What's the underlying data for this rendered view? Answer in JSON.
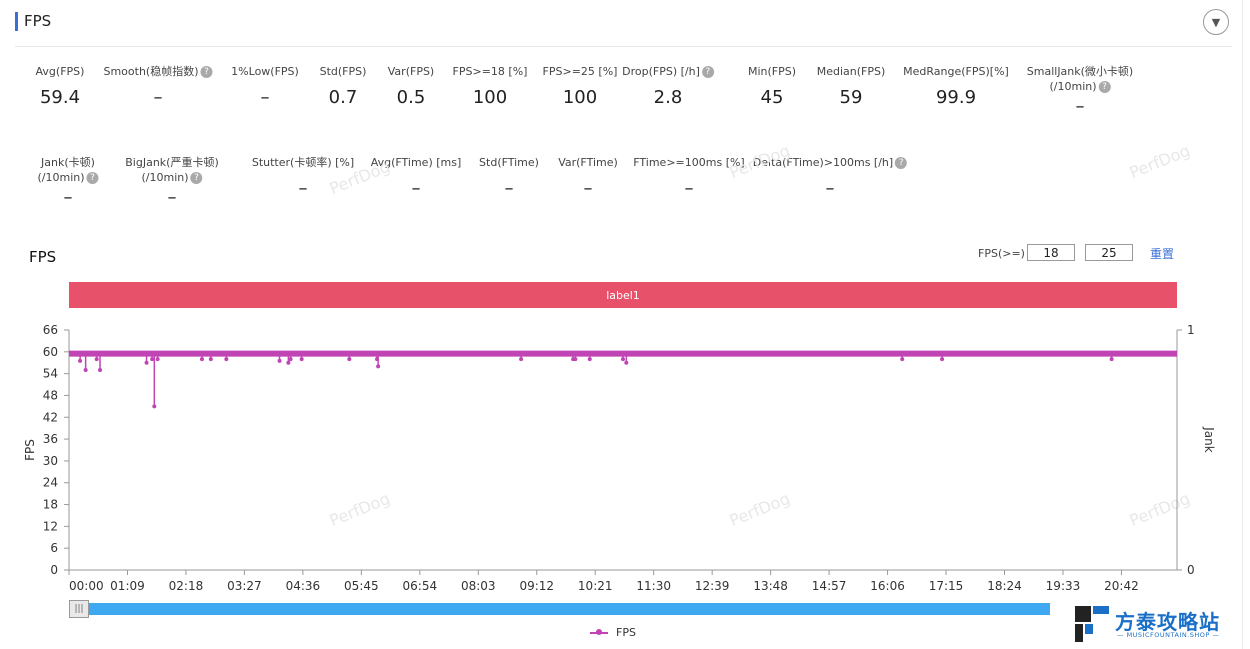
{
  "header": {
    "title": "FPS",
    "collapse_icon": "chevron-down-icon"
  },
  "metrics_row1": [
    {
      "label": "Avg(FPS)",
      "help": false,
      "value": "59.4"
    },
    {
      "label": "Smooth(稳帧指数)",
      "help": true,
      "value": "–"
    },
    {
      "label": "1%Low(FPS)",
      "help": false,
      "value": "–"
    },
    {
      "label": "Std(FPS)",
      "help": false,
      "value": "0.7"
    },
    {
      "label": "Var(FPS)",
      "help": false,
      "value": "0.5"
    },
    {
      "label": "FPS>=18 [%]",
      "help": false,
      "value": "100"
    },
    {
      "label": "FPS>=25 [%]",
      "help": false,
      "value": "100"
    },
    {
      "label": "Drop(FPS) [/h]",
      "help": true,
      "value": "2.8"
    },
    {
      "label": "Min(FPS)",
      "help": false,
      "value": "45"
    },
    {
      "label": "Median(FPS)",
      "help": false,
      "value": "59"
    },
    {
      "label": "MedRange(FPS)[%]",
      "help": false,
      "value": "99.9"
    },
    {
      "label": "SmallJank(微小卡顿)",
      "label2": "(/10min)",
      "help": true,
      "value": "–"
    }
  ],
  "metrics_row2": [
    {
      "label": "Jank(卡顿)",
      "label2": "(/10min)",
      "help": true,
      "value": "–"
    },
    {
      "label": "BigJank(严重卡顿)",
      "label2": "(/10min)",
      "help": true,
      "value": "–"
    },
    {
      "label": "Stutter(卡顿率) [%]",
      "help": false,
      "value": "–"
    },
    {
      "label": "Avg(FTime) [ms]",
      "help": false,
      "value": "–"
    },
    {
      "label": "Std(FTime)",
      "help": false,
      "value": "–"
    },
    {
      "label": "Var(FTime)",
      "help": false,
      "value": "–"
    },
    {
      "label": "FTime>=100ms [%]",
      "help": false,
      "value": "–"
    },
    {
      "label": "Delta(FTime)>100ms [/h]",
      "help": true,
      "value": "–"
    }
  ],
  "watermark": "PerfDog",
  "chart": {
    "title": "FPS",
    "threshold_label": "FPS(>=)",
    "threshold_1": "18",
    "threshold_2": "25",
    "reset_label": "重置",
    "label_band": "label1",
    "legend": "FPS"
  },
  "chart_data": {
    "type": "line",
    "ylabel": "FPS",
    "y2label": "Jank",
    "ylim": [
      0,
      66
    ],
    "y_ticks": [
      "0",
      "6",
      "12",
      "18",
      "24",
      "30",
      "36",
      "42",
      "48",
      "54",
      "60",
      "66"
    ],
    "y2_ticks": [
      "0",
      "1"
    ],
    "x_ticks": [
      "00:00",
      "01:09",
      "02:18",
      "03:27",
      "04:36",
      "05:45",
      "06:54",
      "08:03",
      "09:12",
      "10:21",
      "11:30",
      "12:39",
      "13:48",
      "14:57",
      "16:06",
      "17:15",
      "18:24",
      "19:33",
      "20:42"
    ],
    "series": [
      {
        "name": "FPS",
        "color": "#c044b4",
        "baseline": 59.5,
        "dips": [
          {
            "t": 0.01,
            "v": 57.5
          },
          {
            "t": 0.015,
            "v": 55
          },
          {
            "t": 0.025,
            "v": 58
          },
          {
            "t": 0.028,
            "v": 55
          },
          {
            "t": 0.07,
            "v": 57
          },
          {
            "t": 0.075,
            "v": 58
          },
          {
            "t": 0.077,
            "v": 45
          },
          {
            "t": 0.08,
            "v": 58
          },
          {
            "t": 0.12,
            "v": 58
          },
          {
            "t": 0.128,
            "v": 58
          },
          {
            "t": 0.142,
            "v": 58
          },
          {
            "t": 0.19,
            "v": 57.5
          },
          {
            "t": 0.198,
            "v": 57
          },
          {
            "t": 0.2,
            "v": 58
          },
          {
            "t": 0.21,
            "v": 58
          },
          {
            "t": 0.253,
            "v": 58
          },
          {
            "t": 0.278,
            "v": 58
          },
          {
            "t": 0.279,
            "v": 56
          },
          {
            "t": 0.408,
            "v": 58
          },
          {
            "t": 0.455,
            "v": 58
          },
          {
            "t": 0.457,
            "v": 58
          },
          {
            "t": 0.47,
            "v": 58
          },
          {
            "t": 0.5,
            "v": 58
          },
          {
            "t": 0.503,
            "v": 57
          },
          {
            "t": 0.752,
            "v": 58
          },
          {
            "t": 0.788,
            "v": 58
          },
          {
            "t": 0.941,
            "v": 58
          }
        ]
      }
    ]
  },
  "logo": {
    "text": "方泰攻略站",
    "sub": "— MUSICFOUNTAIN.SHOP —"
  }
}
